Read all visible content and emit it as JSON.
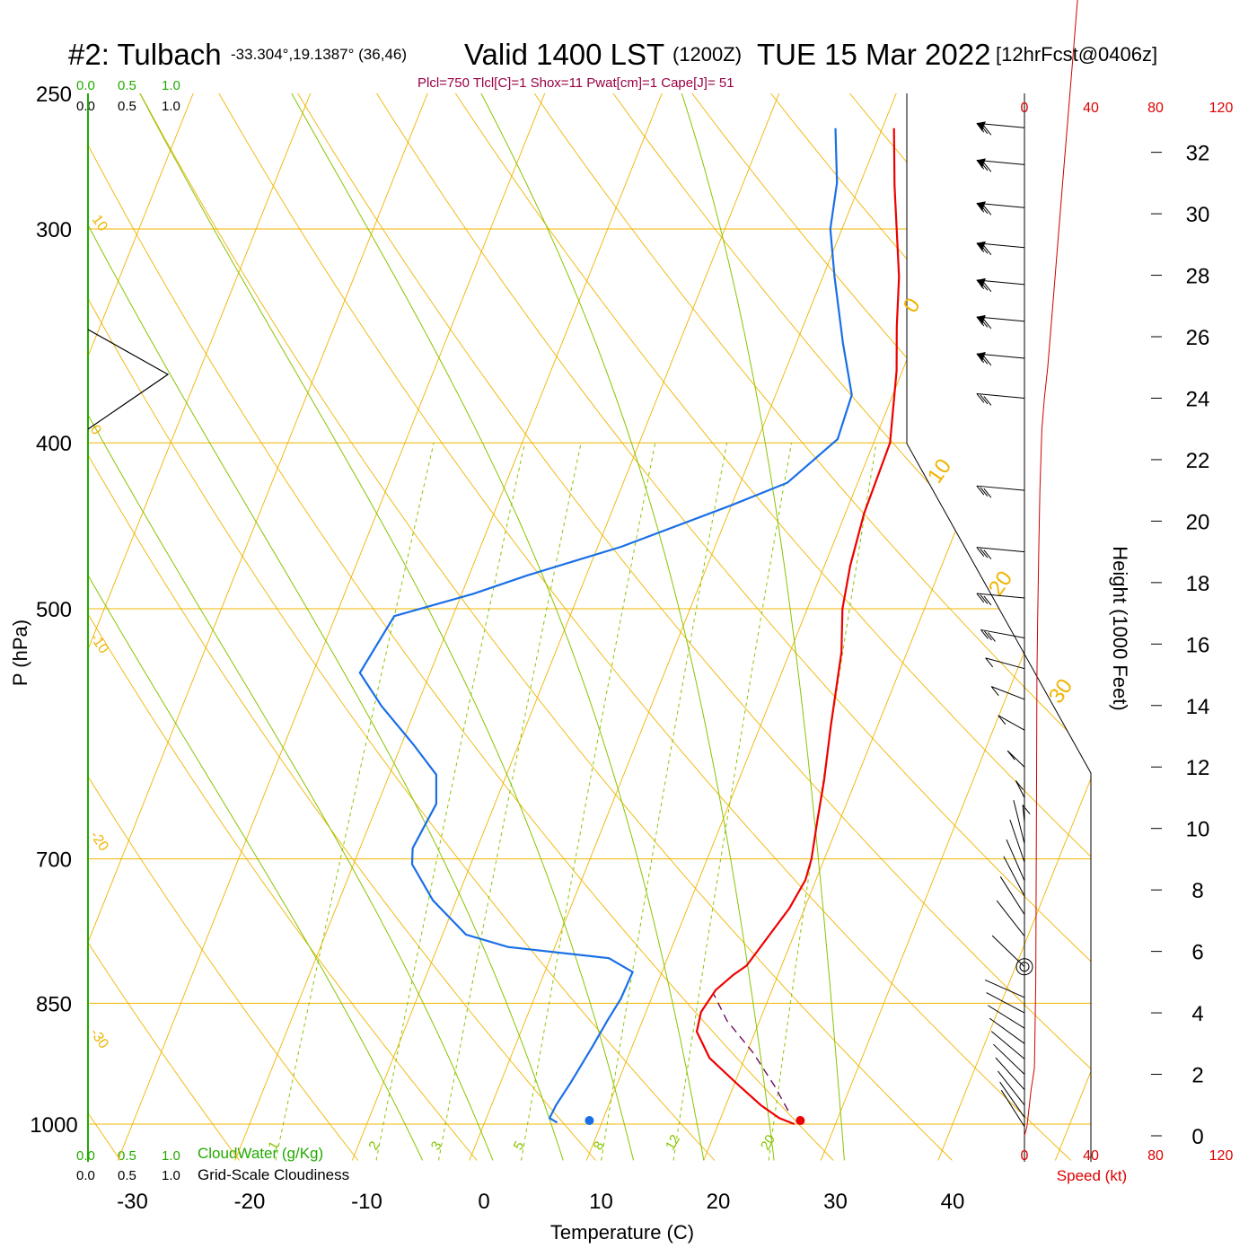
{
  "header": {
    "station": "#2: Tulbach",
    "coords": "-33.304°,19.1387° (36,46)",
    "valid": "Valid 1400 LST",
    "zulu": "(1200Z)",
    "date": "TUE 15 Mar 2022",
    "forecast": "[12hrFcst@0406z]",
    "indices": "Plcl=750 Tlcl[C]=1 Shox=11 Pwat[cm]=1 Cape[J]= 51"
  },
  "colors": {
    "isotherm": "#f0b400",
    "dry_adiabat": "#f0b400",
    "moist_adiabat": "#88c400",
    "mixing_ratio": "#88c400",
    "temperature": "#ee0000",
    "dewpoint": "#1a6fe6",
    "parcel": "#660055",
    "wind_speed": "#cc0000",
    "cloud_scale": "#22aa00",
    "title_indices": "#990044"
  },
  "chart_data": {
    "type": "line",
    "title": "#2: Tulbach",
    "xlabel": "Temperature (C)",
    "ylabel": "P (hPa)",
    "y2label": "Height (1000 Feet)",
    "x_ticks": [
      -30,
      -20,
      -10,
      0,
      10,
      20,
      30,
      40
    ],
    "p_ticks": [
      250,
      300,
      400,
      500,
      700,
      850,
      1000
    ],
    "height_ticks": [
      0,
      2,
      4,
      6,
      8,
      10,
      12,
      14,
      16,
      18,
      20,
      22,
      24,
      26,
      28,
      30,
      32
    ],
    "speed_ticks": [
      "0",
      "40",
      "80",
      "120"
    ],
    "speed_label": "Speed (kt)",
    "cloud_ticks": [
      "0.0",
      "0.5",
      "1.0"
    ],
    "cloudwater_label": "CloudWater (g/Kg)",
    "cloudiness_label": "Grid-Scale Cloudiness",
    "mixing_ratio_labels": [
      "1",
      "2",
      "3",
      "5",
      "8",
      "12",
      "20"
    ],
    "dry_adiabat_labels": [
      "10",
      "0",
      "-10",
      "-20",
      "-30",
      "0",
      "10",
      "20",
      "30"
    ],
    "series": [
      {
        "name": "Temperature",
        "points": [
          [
            26.5,
            1000
          ],
          [
            25,
            992
          ],
          [
            23,
            975
          ],
          [
            20.5,
            950
          ],
          [
            17,
            915
          ],
          [
            15,
            883
          ],
          [
            14.7,
            860
          ],
          [
            15.2,
            835
          ],
          [
            16.2,
            818
          ],
          [
            17,
            808
          ],
          [
            18.7,
            748
          ],
          [
            19.1,
            720
          ],
          [
            18.9,
            700
          ],
          [
            18.1,
            665
          ],
          [
            17.3,
            630
          ],
          [
            16,
            585
          ],
          [
            14.4,
            530
          ],
          [
            13,
            500
          ],
          [
            12.2,
            472
          ],
          [
            11.6,
            440
          ],
          [
            11.4,
            400
          ],
          [
            9.5,
            363
          ],
          [
            8,
            342
          ],
          [
            6.5,
            320
          ],
          [
            3,
            283
          ],
          [
            1,
            262
          ]
        ]
      },
      {
        "name": "Dewpoint",
        "points": [
          [
            6.2,
            998
          ],
          [
            5.4,
            992
          ],
          [
            5.5,
            975
          ],
          [
            6,
            945
          ],
          [
            6.6,
            902
          ],
          [
            7,
            870
          ],
          [
            7.4,
            845
          ],
          [
            7.5,
            815
          ],
          [
            5,
            800
          ],
          [
            -4,
            788
          ],
          [
            -8,
            775
          ],
          [
            -12,
            740
          ],
          [
            -15,
            705
          ],
          [
            -15.5,
            690
          ],
          [
            -15,
            650
          ],
          [
            -16,
            625
          ],
          [
            -19,
            600
          ],
          [
            -23,
            570
          ],
          [
            -26,
            545
          ],
          [
            -25,
            505
          ],
          [
            -19,
            490
          ],
          [
            -15,
            478
          ],
          [
            -8,
            460
          ],
          [
            0,
            435
          ],
          [
            4,
            422
          ],
          [
            6.8,
            398
          ],
          [
            6.5,
            375
          ],
          [
            4,
            350
          ],
          [
            1,
            320
          ],
          [
            -1,
            300
          ],
          [
            -2,
            282
          ],
          [
            -4,
            262
          ]
        ]
      },
      {
        "name": "Parcel",
        "points": [
          [
            25.5,
            982
          ],
          [
            23.5,
            950
          ],
          [
            20.5,
            908
          ],
          [
            17.2,
            870
          ],
          [
            15.2,
            840
          ]
        ]
      }
    ],
    "surface": {
      "temperature": 27,
      "dewpoint": 9
    },
    "wind_speed_profile": [
      [
        0,
        0
      ],
      [
        1.5,
        0.3
      ],
      [
        4,
        1.5
      ],
      [
        6,
        2.2
      ],
      [
        6.8,
        5
      ],
      [
        7.2,
        10
      ],
      [
        7.5,
        15
      ],
      [
        8,
        17
      ],
      [
        8.6,
        19
      ],
      [
        9.3,
        21
      ],
      [
        10.5,
        23
      ],
      [
        12,
        24
      ],
      [
        14,
        25
      ],
      [
        17,
        27
      ],
      [
        20,
        29
      ],
      [
        23,
        31
      ],
      [
        26,
        33
      ],
      [
        29,
        35
      ],
      [
        32,
        37
      ],
      [
        33.1,
        39
      ]
    ],
    "wind_barb_heights": [
      0.3,
      0.6,
      1.0,
      1.5,
      2.0,
      2.5,
      3.0,
      3.5,
      4.0,
      4.5,
      5.5,
      6.5,
      7.2,
      7.8,
      8.3,
      8.9,
      9.5,
      10.2,
      11.0,
      12.0,
      13.2,
      14.2,
      15.2,
      16.2,
      17.5,
      19.0,
      21.0,
      24.0,
      25.3,
      26.5,
      27.7,
      28.9,
      30.2,
      31.6,
      32.8
    ],
    "calm_height": 5.5
  }
}
